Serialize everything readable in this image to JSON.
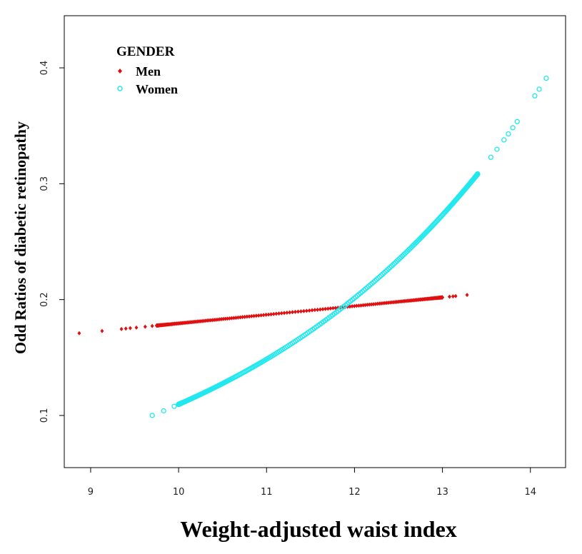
{
  "chart_data": {
    "type": "scatter",
    "title": "",
    "xlabel": "Weight-adjusted waist index",
    "ylabel": "Odd Ratios of diabetic retinopathy",
    "xlim": [
      8.7,
      14.4
    ],
    "ylim": [
      0.055,
      0.445
    ],
    "x_ticks": [
      9,
      10,
      11,
      12,
      13,
      14
    ],
    "y_ticks": [
      0.1,
      0.2,
      0.3,
      0.4
    ],
    "x_tick_labels": [
      "9",
      "10",
      "11",
      "12",
      "13",
      "14"
    ],
    "y_tick_labels": [
      "0.1",
      "0.2",
      "0.3",
      "0.4"
    ],
    "legend": {
      "title": "GENDER",
      "position": "top-left",
      "entries": [
        "Men",
        "Women"
      ]
    },
    "series": [
      {
        "name": "Men",
        "color": "#e01010",
        "marker": "filled-diamond",
        "x_range": [
          8.87,
          13.28
        ],
        "y_range": [
          0.171,
          0.204
        ],
        "model": "linear",
        "point_count": 200,
        "sample_points": [
          [
            8.87,
            0.171
          ],
          [
            9.13,
            0.172
          ],
          [
            10.0,
            0.179
          ],
          [
            11.0,
            0.187
          ],
          [
            12.0,
            0.195
          ],
          [
            13.0,
            0.202
          ],
          [
            13.28,
            0.204
          ]
        ]
      },
      {
        "name": "Women",
        "color": "#20e8ee",
        "marker": "open-circle",
        "x_range": [
          9.7,
          14.18
        ],
        "y_range": [
          0.1,
          0.391
        ],
        "model": "exponential",
        "point_count": 320,
        "sample_points": [
          [
            9.7,
            0.1
          ],
          [
            10.0,
            0.109
          ],
          [
            11.0,
            0.145
          ],
          [
            12.0,
            0.195
          ],
          [
            13.0,
            0.265
          ],
          [
            13.5,
            0.316
          ],
          [
            14.18,
            0.391
          ]
        ]
      }
    ]
  }
}
